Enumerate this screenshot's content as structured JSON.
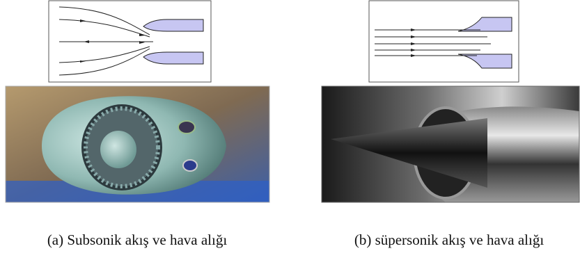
{
  "panels": [
    {
      "caption": "(a) Subsonik akış ve hava alığı"
    },
    {
      "caption": "(b) süpersonik akış ve hava alığı"
    }
  ]
}
